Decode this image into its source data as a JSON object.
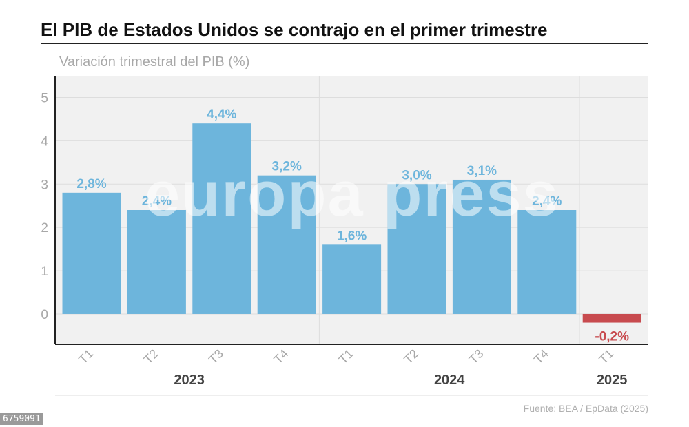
{
  "header": {
    "title": "El PIB de Estados Unidos se contrajo en el primer trimestre"
  },
  "footer": {
    "source": "Fuente: BEA / EpData (2025)",
    "code": "6759091"
  },
  "watermark": "europa press",
  "colors": {
    "positive": "#6db5dc",
    "negative": "#c84b4f",
    "positive_label": "#6db5dc",
    "negative_label": "#c84b4f",
    "plot_background": "#f1f1f1",
    "axis": "#222222",
    "tick_label": "#a8a8a8",
    "year_label": "#444444"
  },
  "chart_data": {
    "type": "bar",
    "title": "El PIB de Estados Unidos se contrajo en el primer trimestre",
    "ylabel": "Variación trimestral del PIB (%)",
    "xlabel": "",
    "ylim": [
      -0.7,
      5.5
    ],
    "yticks": [
      0,
      1,
      2,
      3,
      4,
      5
    ],
    "grid": true,
    "categories": [
      "T1",
      "T2",
      "T3",
      "T4",
      "T1",
      "T2",
      "T3",
      "T4",
      "T1"
    ],
    "values": [
      2.8,
      2.4,
      4.4,
      3.2,
      1.6,
      3.0,
      3.1,
      2.4,
      -0.2
    ],
    "data_labels": [
      "2,8%",
      "2,4%",
      "4,4%",
      "3,2%",
      "1,6%",
      "3,0%",
      "3,1%",
      "2,4%",
      "-0,2%"
    ],
    "groups": [
      {
        "label": "2023",
        "categories": [
          0,
          1,
          2,
          3
        ]
      },
      {
        "label": "2024",
        "categories": [
          4,
          5,
          6,
          7
        ]
      },
      {
        "label": "2025",
        "categories": [
          8
        ]
      }
    ]
  }
}
